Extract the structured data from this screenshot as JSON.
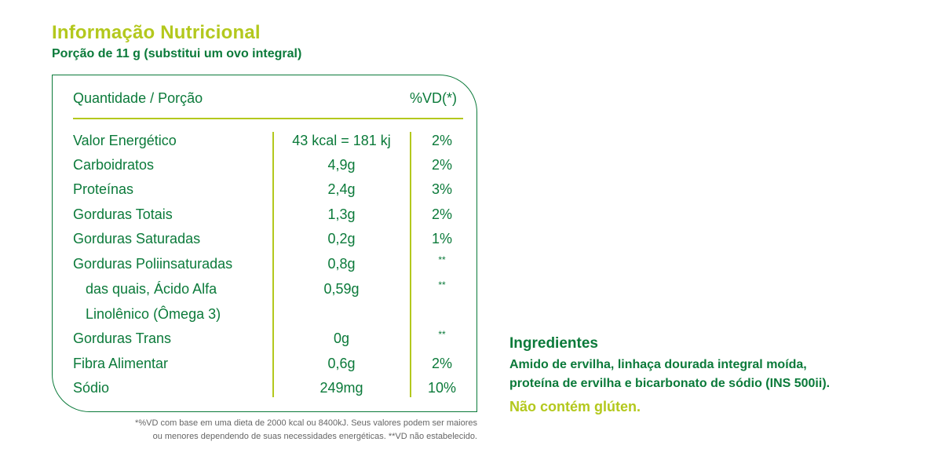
{
  "title": "Informação Nutricional",
  "subtitle": "Porção de 11 g (substitui um ovo integral)",
  "table": {
    "header_left": "Quantidade / Porção",
    "header_right": "%VD(*)",
    "rows": [
      {
        "label": "Valor Energético",
        "amount": "43 kcal = 181 kj",
        "vd": "2%"
      },
      {
        "label": "Carboidratos",
        "amount": "4,9g",
        "vd": "2%"
      },
      {
        "label": "Proteínas",
        "amount": "2,4g",
        "vd": "3%"
      },
      {
        "label": "Gorduras Totais",
        "amount": "1,3g",
        "vd": "2%"
      },
      {
        "label": "Gorduras Saturadas",
        "amount": "0,2g",
        "vd": "1%"
      },
      {
        "label": "Gorduras Poliinsaturadas",
        "amount": "0,8g",
        "vd": "**"
      },
      {
        "label": "das quais, Ácido Alfa",
        "amount": "0,59g",
        "vd": "**"
      },
      {
        "label": "Linolênico (Ômega 3)",
        "amount": "",
        "vd": ""
      },
      {
        "label": "Gorduras Trans",
        "amount": "0g",
        "vd": "**"
      },
      {
        "label": "Fibra Alimentar",
        "amount": "0,6g",
        "vd": "2%"
      },
      {
        "label": "Sódio",
        "amount": "249mg",
        "vd": "10%"
      }
    ]
  },
  "footnote_line1": "*%VD com base em uma dieta de 2000 kcal ou 8400kJ. Seus valores podem ser maiores",
  "footnote_line2": "ou menores dependendo de suas necessidades energéticas. **VD não estabelecido.",
  "ingredients": {
    "title": "Ingredientes",
    "line1": "Amido de ervilha, linhaça dourada integral moída,",
    "line2": "proteína de ervilha e bicarbonato de sódio (INS 500ii).",
    "gluten": "Não contém glúten."
  },
  "colors": {
    "green": "#0b7a3a",
    "lime": "#b3c81d",
    "gray": "#666666"
  }
}
